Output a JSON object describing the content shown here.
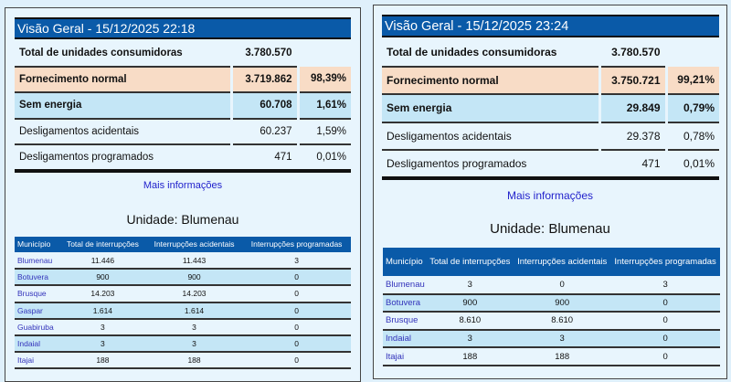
{
  "panels": [
    {
      "title": "Visão Geral - 15/12/2025 22:18",
      "summary": {
        "total_label": "Total de unidades consumidoras",
        "total_value": "3.780.570",
        "rows": [
          {
            "label": "Fornecimento normal",
            "value": "3.719.862",
            "pct": "98,39%"
          },
          {
            "label": "Sem energia",
            "value": "60.708",
            "pct": "1,61%"
          },
          {
            "label": "Desligamentos acidentais",
            "value": "60.237",
            "pct": "1,59%"
          },
          {
            "label": "Desligamentos programados",
            "value": "471",
            "pct": "0,01%"
          }
        ]
      },
      "more_link": "Mais informações",
      "unit_title": "Unidade: Blumenau",
      "table": {
        "headers": [
          "Município",
          "Total de interrupções",
          "Interrupções acidentais",
          "Interrupções programadas"
        ],
        "rows": [
          [
            "Blumenau",
            "11.446",
            "11.443",
            "3"
          ],
          [
            "Botuvera",
            "900",
            "900",
            "0"
          ],
          [
            "Brusque",
            "14.203",
            "14.203",
            "0"
          ],
          [
            "Gaspar",
            "1.614",
            "1.614",
            "0"
          ],
          [
            "Guabiruba",
            "3",
            "3",
            "0"
          ],
          [
            "Indaial",
            "3",
            "3",
            "0"
          ],
          [
            "Itajai",
            "188",
            "188",
            "0"
          ]
        ]
      }
    },
    {
      "title": "Visão Geral - 15/12/2025 23:24",
      "summary": {
        "total_label": "Total de unidades consumidoras",
        "total_value": "3.780.570",
        "rows": [
          {
            "label": "Fornecimento normal",
            "value": "3.750.721",
            "pct": "99,21%"
          },
          {
            "label": "Sem energia",
            "value": "29.849",
            "pct": "0,79%"
          },
          {
            "label": "Desligamentos acidentais",
            "value": "29.378",
            "pct": "0,78%"
          },
          {
            "label": "Desligamentos programados",
            "value": "471",
            "pct": "0,01%"
          }
        ]
      },
      "more_link": "Mais informações",
      "unit_title": "Unidade: Blumenau",
      "table": {
        "headers": [
          "Município",
          "Total de interrupções",
          "Interrupções acidentais",
          "Interrupções programadas"
        ],
        "rows": [
          [
            "Blumenau",
            "3",
            "0",
            "3"
          ],
          [
            "Botuvera",
            "900",
            "900",
            "0"
          ],
          [
            "Brusque",
            "8.610",
            "8.610",
            "0"
          ],
          [
            "Indaial",
            "3",
            "3",
            "0"
          ],
          [
            "Itajai",
            "188",
            "188",
            "0"
          ]
        ]
      }
    }
  ]
}
